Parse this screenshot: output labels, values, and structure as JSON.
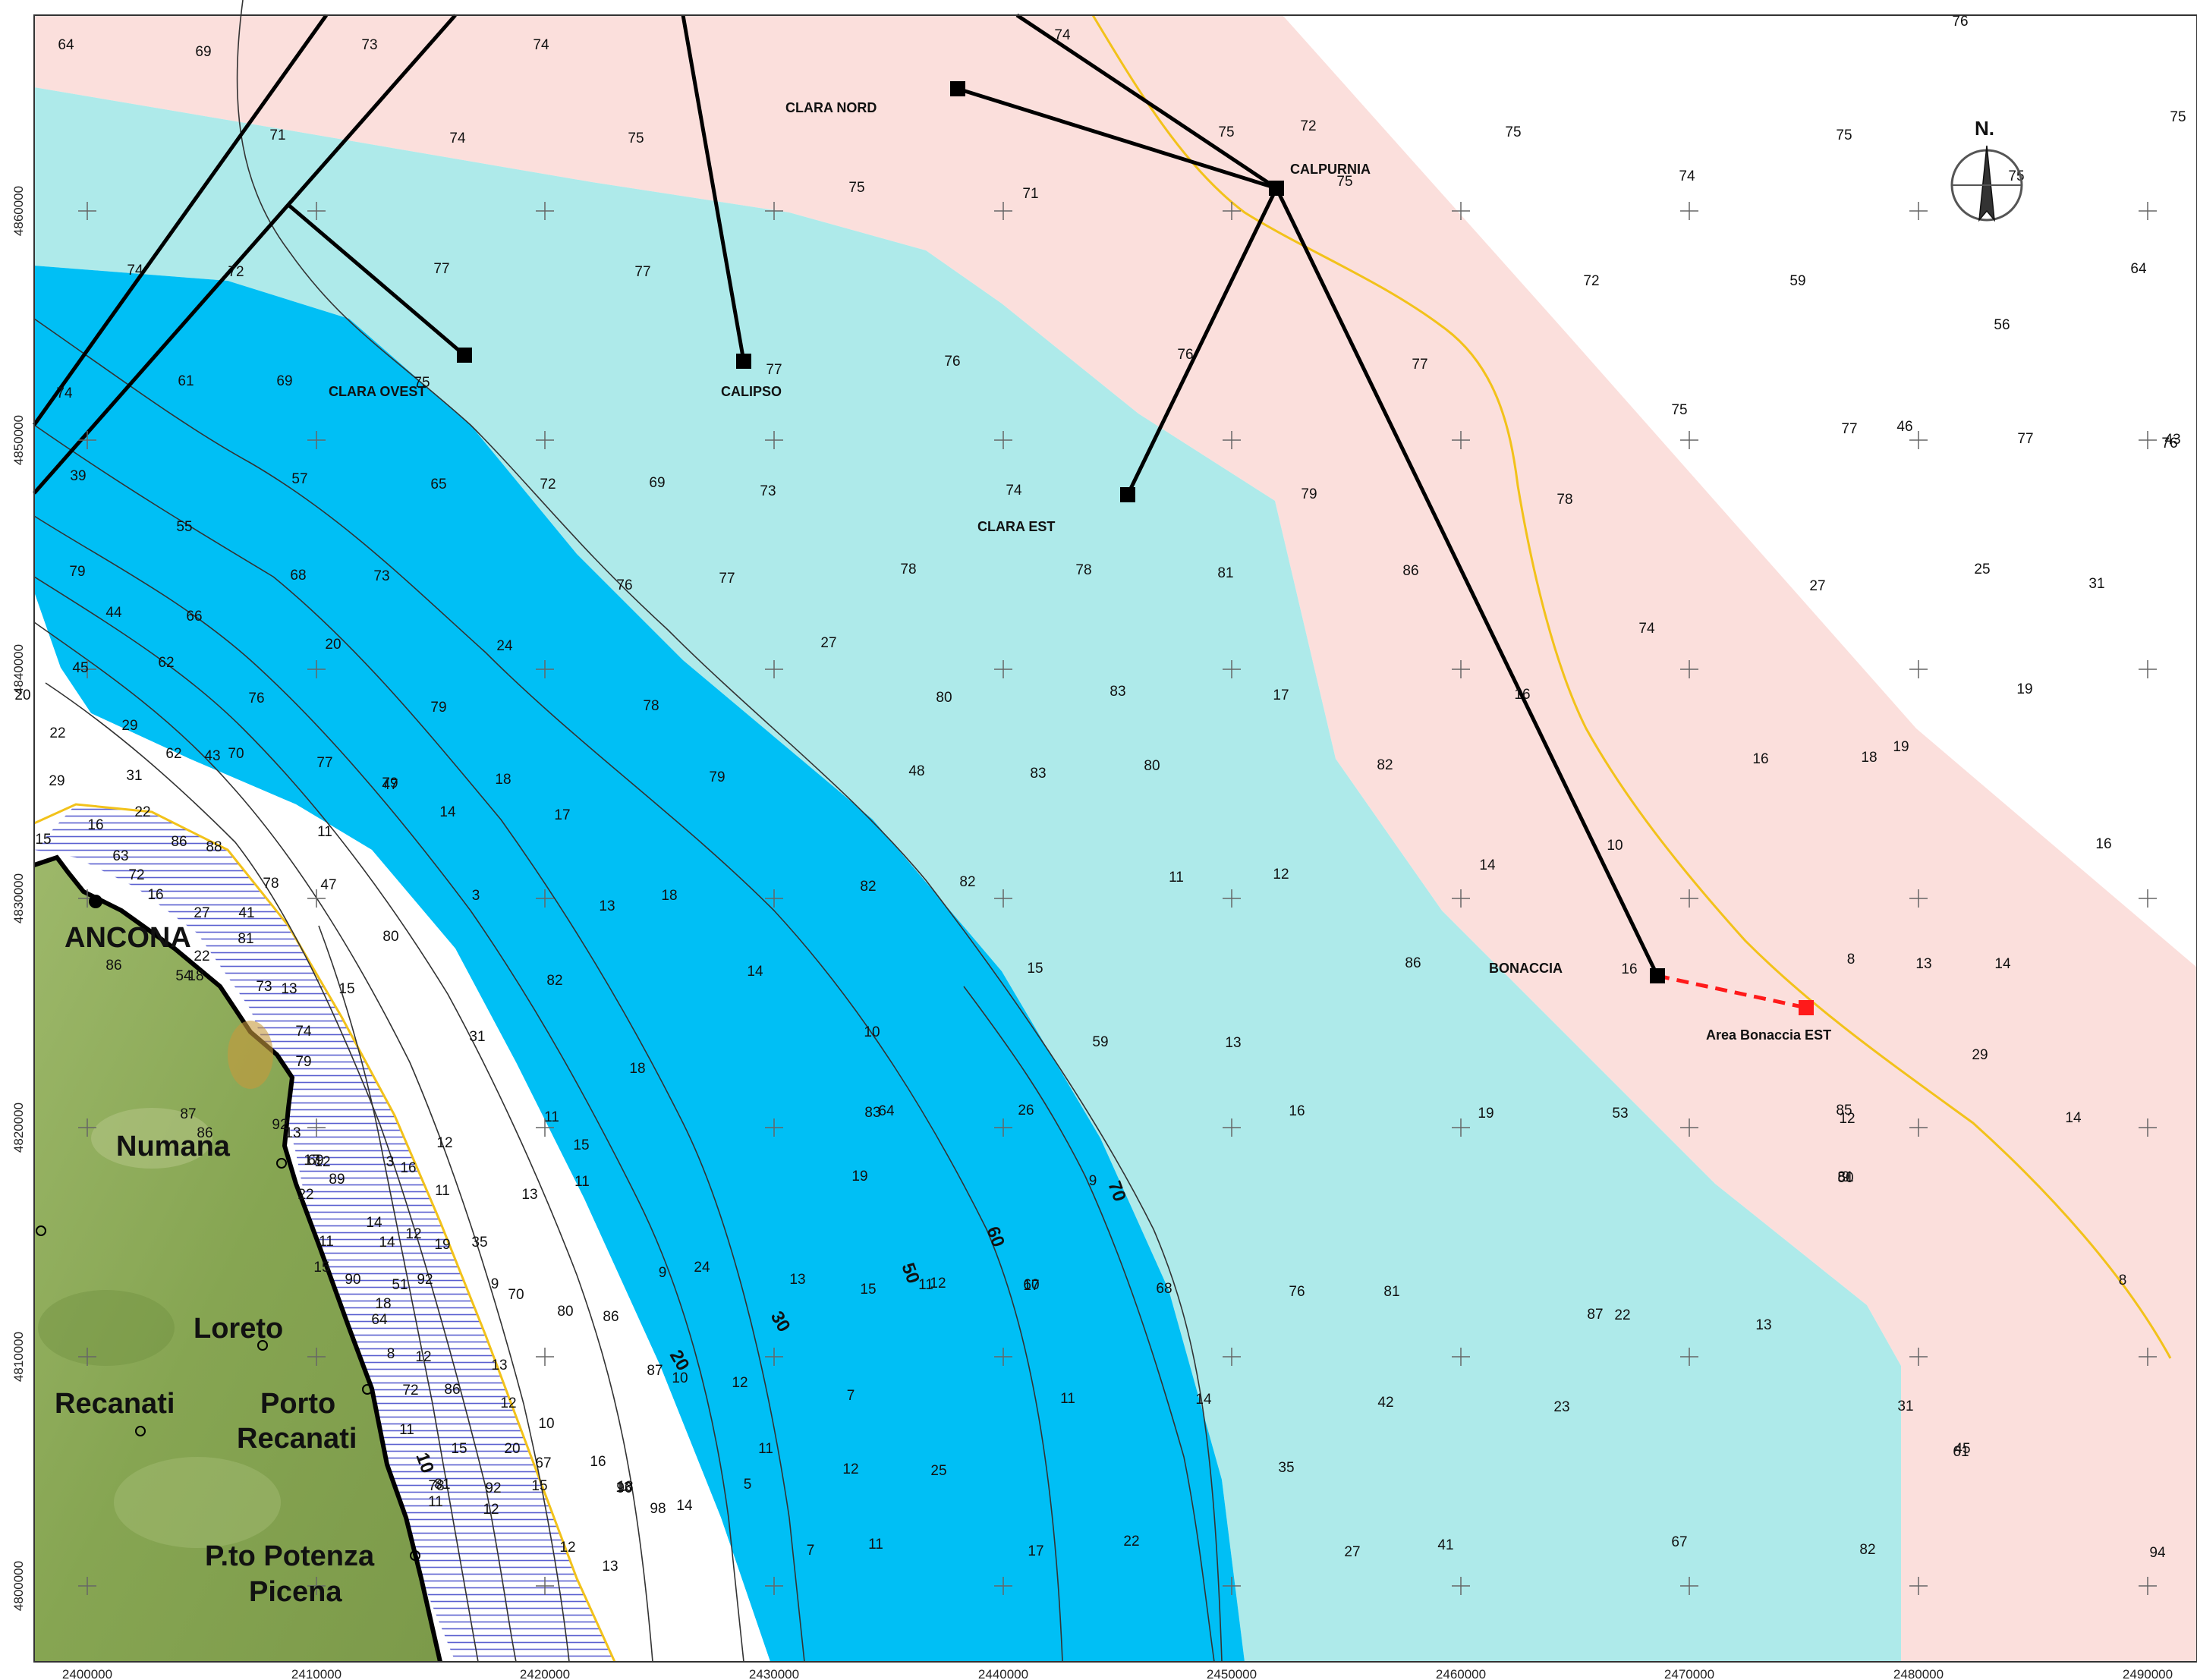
{
  "map": {
    "colors": {
      "shelf_light": "#aeeaea",
      "shelf_deep": "#00bff5",
      "zone_pink": "#fbdfdc",
      "land": "#8da85a",
      "pipeline_yellow": "#f2c21a",
      "concession_red": "#ff1a1a"
    },
    "north_label": "N.",
    "north_icon": "compass-arrow-icon",
    "cities": [
      {
        "name": "ANCONA"
      },
      {
        "name": "Numana"
      },
      {
        "name": "Loreto"
      },
      {
        "name": "Recanati"
      },
      {
        "name": "Porto"
      },
      {
        "name": "Recanati"
      },
      {
        "name": "P.to Potenza"
      },
      {
        "name": "Picena"
      }
    ],
    "platforms": [
      {
        "name": "CLARA NORD"
      },
      {
        "name": "CALPURNIA"
      },
      {
        "name": "CLARA OVEST"
      },
      {
        "name": "CALIPSO"
      },
      {
        "name": "CLARA EST"
      },
      {
        "name": "BONACCIA"
      },
      {
        "name": "Area Bonaccia EST"
      }
    ],
    "contour_labels": [
      "70",
      "60",
      "50",
      "30",
      "20",
      "10"
    ],
    "x_axis_ticks": [
      "2400000",
      "2410000",
      "2420000",
      "2430000",
      "2440000",
      "2450000",
      "2460000",
      "2470000",
      "2480000",
      "2490000"
    ],
    "y_axis_ticks": [
      "4860000",
      "4850000",
      "4840000",
      "4830000",
      "4820000",
      "4810000",
      "4800000"
    ],
    "soundings": [
      "64",
      "69",
      "73",
      "74",
      "74",
      "76",
      "71",
      "74",
      "75",
      "75",
      "72",
      "75",
      "75",
      "75",
      "71",
      "75",
      "74",
      "75",
      "75",
      "77",
      "77",
      "72",
      "72",
      "59",
      "64",
      "74",
      "77",
      "76",
      "77",
      "56",
      "61",
      "69",
      "72",
      "75",
      "75",
      "46",
      "77",
      "74",
      "76",
      "77",
      "39",
      "57",
      "65",
      "69",
      "73",
      "74",
      "76",
      "79",
      "78",
      "43",
      "48",
      "55",
      "68",
      "73",
      "76",
      "77",
      "78",
      "78",
      "81",
      "86",
      "27",
      "25",
      "31",
      "79",
      "44",
      "66",
      "74",
      "20",
      "24",
      "27",
      "45",
      "62",
      "76",
      "79",
      "78",
      "80",
      "83",
      "17",
      "16",
      "19",
      "20",
      "22",
      "29",
      "62",
      "70",
      "77",
      "79",
      "79",
      "83",
      "80",
      "82",
      "16",
      "18",
      "19",
      "29",
      "31",
      "43",
      "47",
      "14",
      "18",
      "17",
      "15",
      "16",
      "22",
      "86",
      "88",
      "11",
      "10",
      "16",
      "63",
      "72",
      "78",
      "82",
      "82",
      "11",
      "12",
      "14",
      "16",
      "27",
      "41",
      "47",
      "3",
      "13",
      "18",
      "22",
      "81",
      "80",
      "86",
      "8",
      "13",
      "14",
      "18",
      "54",
      "73",
      "82",
      "86",
      "14",
      "15",
      "16",
      "29",
      "13",
      "15",
      "31",
      "59",
      "74",
      "79",
      "10",
      "13",
      "18",
      "83",
      "12",
      "14",
      "16",
      "19",
      "26",
      "53",
      "64",
      "81",
      "85",
      "87",
      "86",
      "92",
      "11",
      "13",
      "17",
      "3",
      "12",
      "12",
      "15",
      "19",
      "9",
      "50",
      "69",
      "89",
      "11",
      "16",
      "22",
      "9",
      "14",
      "12",
      "11",
      "13",
      "24",
      "60",
      "68",
      "76",
      "81",
      "87",
      "8",
      "11",
      "14",
      "19",
      "35",
      "51",
      "9",
      "12",
      "13",
      "15",
      "15",
      "90",
      "92",
      "9",
      "11",
      "17",
      "22",
      "13",
      "18",
      "64",
      "70",
      "80",
      "86",
      "87",
      "8",
      "12",
      "13",
      "12",
      "10",
      "11",
      "14",
      "42",
      "23",
      "31",
      "45",
      "72",
      "86",
      "12",
      "10",
      "11",
      "15",
      "20",
      "16",
      "7",
      "11",
      "12",
      "25",
      "35",
      "61",
      "67",
      "78",
      "81",
      "92",
      "90",
      "98",
      "13",
      "14",
      "5",
      "11",
      "12",
      "15",
      "18",
      "7",
      "11",
      "17",
      "22",
      "27",
      "41",
      "67",
      "82",
      "94",
      "12",
      "13"
    ]
  }
}
